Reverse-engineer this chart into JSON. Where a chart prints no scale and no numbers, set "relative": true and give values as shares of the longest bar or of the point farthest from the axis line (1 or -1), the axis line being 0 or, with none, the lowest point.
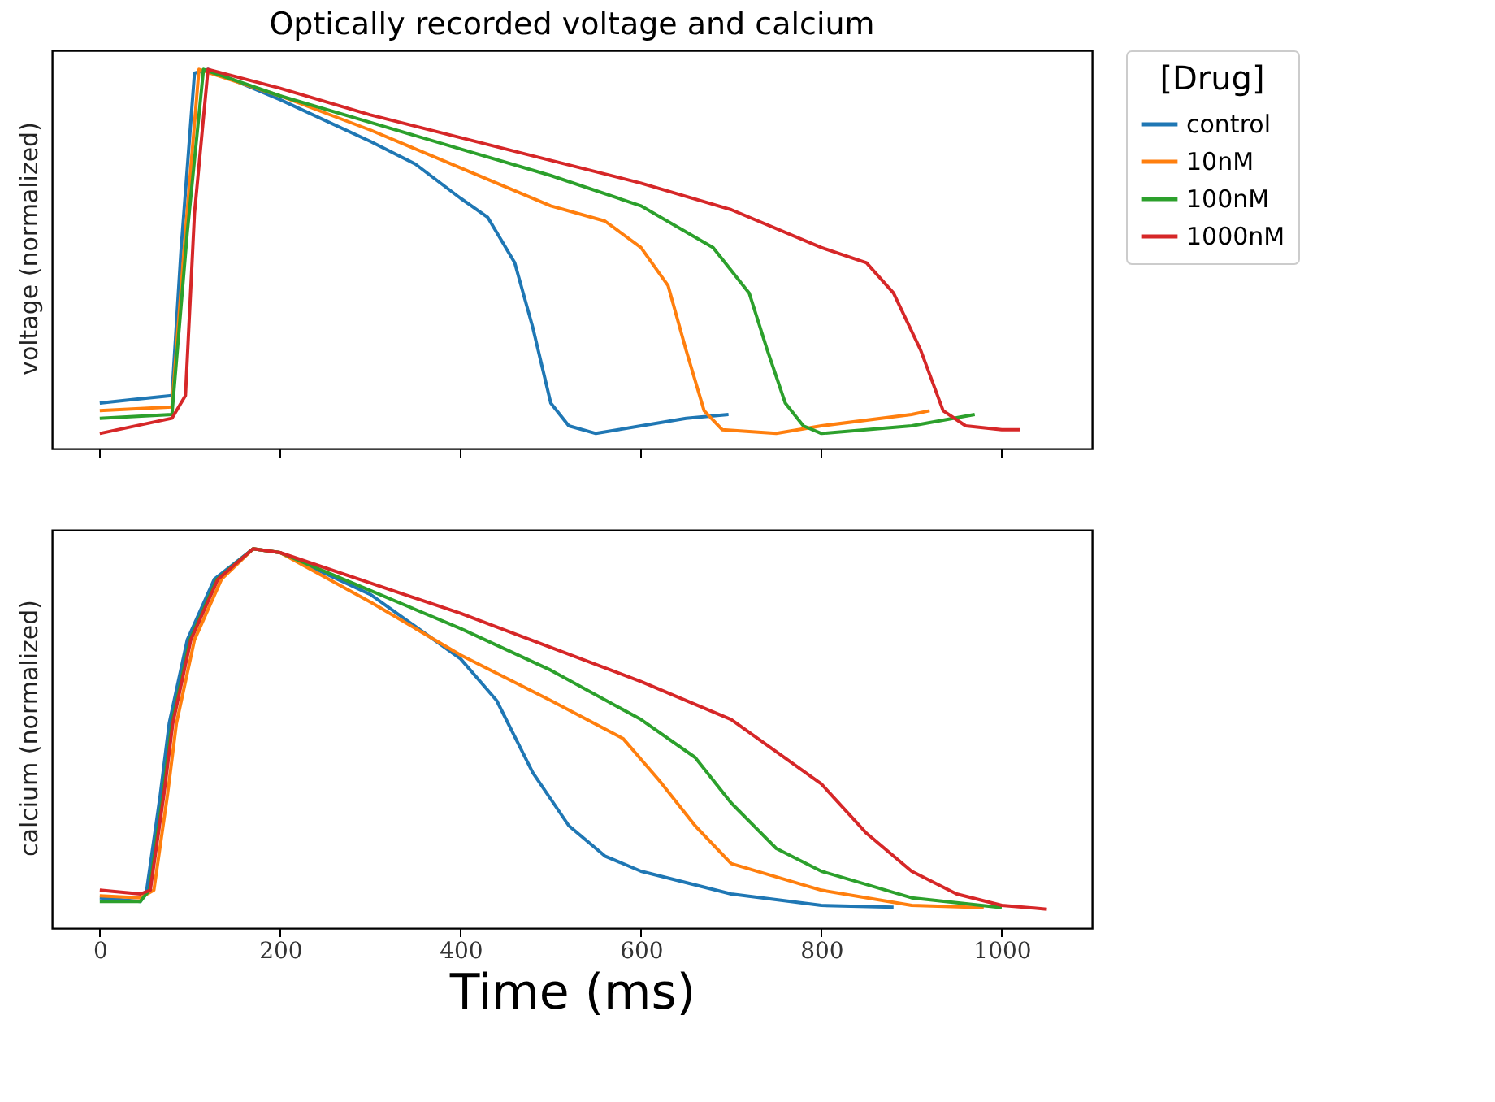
{
  "chart_data": [
    {
      "type": "line",
      "title": "Optically recorded voltage and calcium",
      "ylabel": "voltage (normalized)",
      "relative": true,
      "xlim": [
        -53,
        1100
      ],
      "xticks": [
        {
          "value": 0,
          "label": null
        },
        {
          "value": 200,
          "label": null
        },
        {
          "value": 400,
          "label": null
        },
        {
          "value": 600,
          "label": null
        },
        {
          "value": 800,
          "label": null
        },
        {
          "value": 1000,
          "label": null
        }
      ],
      "tick_labels": false,
      "grid": false,
      "legend": "right",
      "legend_title": "[Drug]",
      "marker": "none",
      "line_style": "solid",
      "series": [
        {
          "name": "control",
          "color": "#1f77b4",
          "x": [
            0,
            40,
            80,
            90,
            105,
            120,
            200,
            300,
            350,
            400,
            430,
            460,
            480,
            500,
            520,
            550,
            600,
            650,
            697
          ],
          "values": [
            0.12,
            0.13,
            0.14,
            0.52,
            0.99,
            1.0,
            0.92,
            0.81,
            0.75,
            0.66,
            0.61,
            0.49,
            0.32,
            0.12,
            0.06,
            0.04,
            0.06,
            0.08,
            0.09
          ]
        },
        {
          "name": "10nM",
          "color": "#ff7f0e",
          "x": [
            0,
            80,
            95,
            110,
            200,
            300,
            400,
            500,
            560,
            600,
            630,
            650,
            670,
            690,
            750,
            800,
            900,
            920
          ],
          "values": [
            0.1,
            0.11,
            0.57,
            1.0,
            0.93,
            0.84,
            0.74,
            0.64,
            0.6,
            0.53,
            0.43,
            0.26,
            0.1,
            0.05,
            0.04,
            0.06,
            0.09,
            0.1
          ]
        },
        {
          "name": "100nM",
          "color": "#2ca02c",
          "x": [
            0,
            80,
            97,
            115,
            200,
            300,
            400,
            500,
            600,
            680,
            720,
            740,
            760,
            780,
            800,
            900,
            970
          ],
          "values": [
            0.08,
            0.09,
            0.57,
            1.0,
            0.93,
            0.86,
            0.79,
            0.72,
            0.64,
            0.53,
            0.41,
            0.26,
            0.12,
            0.06,
            0.04,
            0.06,
            0.09
          ]
        },
        {
          "name": "1000nM",
          "color": "#d62728",
          "x": [
            0,
            80,
            95,
            105,
            120,
            200,
            300,
            400,
            500,
            600,
            700,
            800,
            850,
            880,
            910,
            935,
            960,
            1000,
            1020
          ],
          "values": [
            0.04,
            0.08,
            0.14,
            0.62,
            1.0,
            0.95,
            0.88,
            0.82,
            0.76,
            0.7,
            0.63,
            0.53,
            0.49,
            0.41,
            0.26,
            0.1,
            0.06,
            0.05,
            0.05
          ]
        }
      ]
    },
    {
      "type": "line",
      "xlabel": "Time (ms)",
      "ylabel": "calcium (normalized)",
      "relative": true,
      "xlim": [
        -53,
        1100
      ],
      "xticks": [
        0,
        200,
        400,
        600,
        800,
        1000
      ],
      "tick_labels": "x",
      "grid": false,
      "marker": "none",
      "line_style": "solid",
      "series": [
        {
          "name": "control",
          "color": "#1f77b4",
          "x": [
            0,
            45,
            52,
            67,
            77,
            97,
            127,
            170,
            200,
            300,
            400,
            440,
            480,
            520,
            560,
            600,
            700,
            800,
            880
          ],
          "values": [
            0.08,
            0.07,
            0.1,
            0.35,
            0.54,
            0.76,
            0.92,
            1.0,
            0.99,
            0.88,
            0.71,
            0.6,
            0.41,
            0.27,
            0.19,
            0.15,
            0.09,
            0.06,
            0.055
          ]
        },
        {
          "name": "10nM",
          "color": "#ff7f0e",
          "x": [
            0,
            45,
            60,
            75,
            85,
            105,
            135,
            170,
            200,
            300,
            400,
            500,
            580,
            620,
            660,
            700,
            800,
            900,
            980
          ],
          "values": [
            0.085,
            0.08,
            0.1,
            0.35,
            0.54,
            0.76,
            0.92,
            1.0,
            0.99,
            0.86,
            0.72,
            0.6,
            0.5,
            0.39,
            0.27,
            0.17,
            0.1,
            0.06,
            0.054
          ]
        },
        {
          "name": "100nM",
          "color": "#2ca02c",
          "x": [
            0,
            45,
            55,
            70,
            80,
            100,
            130,
            170,
            200,
            300,
            400,
            500,
            600,
            660,
            700,
            750,
            800,
            900,
            1000
          ],
          "values": [
            0.07,
            0.07,
            0.1,
            0.35,
            0.54,
            0.76,
            0.92,
            1.0,
            0.99,
            0.89,
            0.79,
            0.68,
            0.55,
            0.45,
            0.33,
            0.21,
            0.15,
            0.08,
            0.054
          ]
        },
        {
          "name": "1000nM",
          "color": "#d62728",
          "x": [
            0,
            45,
            56,
            71,
            81,
            101,
            131,
            170,
            200,
            300,
            400,
            500,
            600,
            700,
            800,
            850,
            900,
            950,
            1000,
            1050
          ],
          "values": [
            0.1,
            0.09,
            0.1,
            0.35,
            0.54,
            0.76,
            0.92,
            1.0,
            0.99,
            0.91,
            0.83,
            0.74,
            0.65,
            0.55,
            0.38,
            0.25,
            0.15,
            0.09,
            0.06,
            0.05
          ]
        }
      ]
    }
  ]
}
